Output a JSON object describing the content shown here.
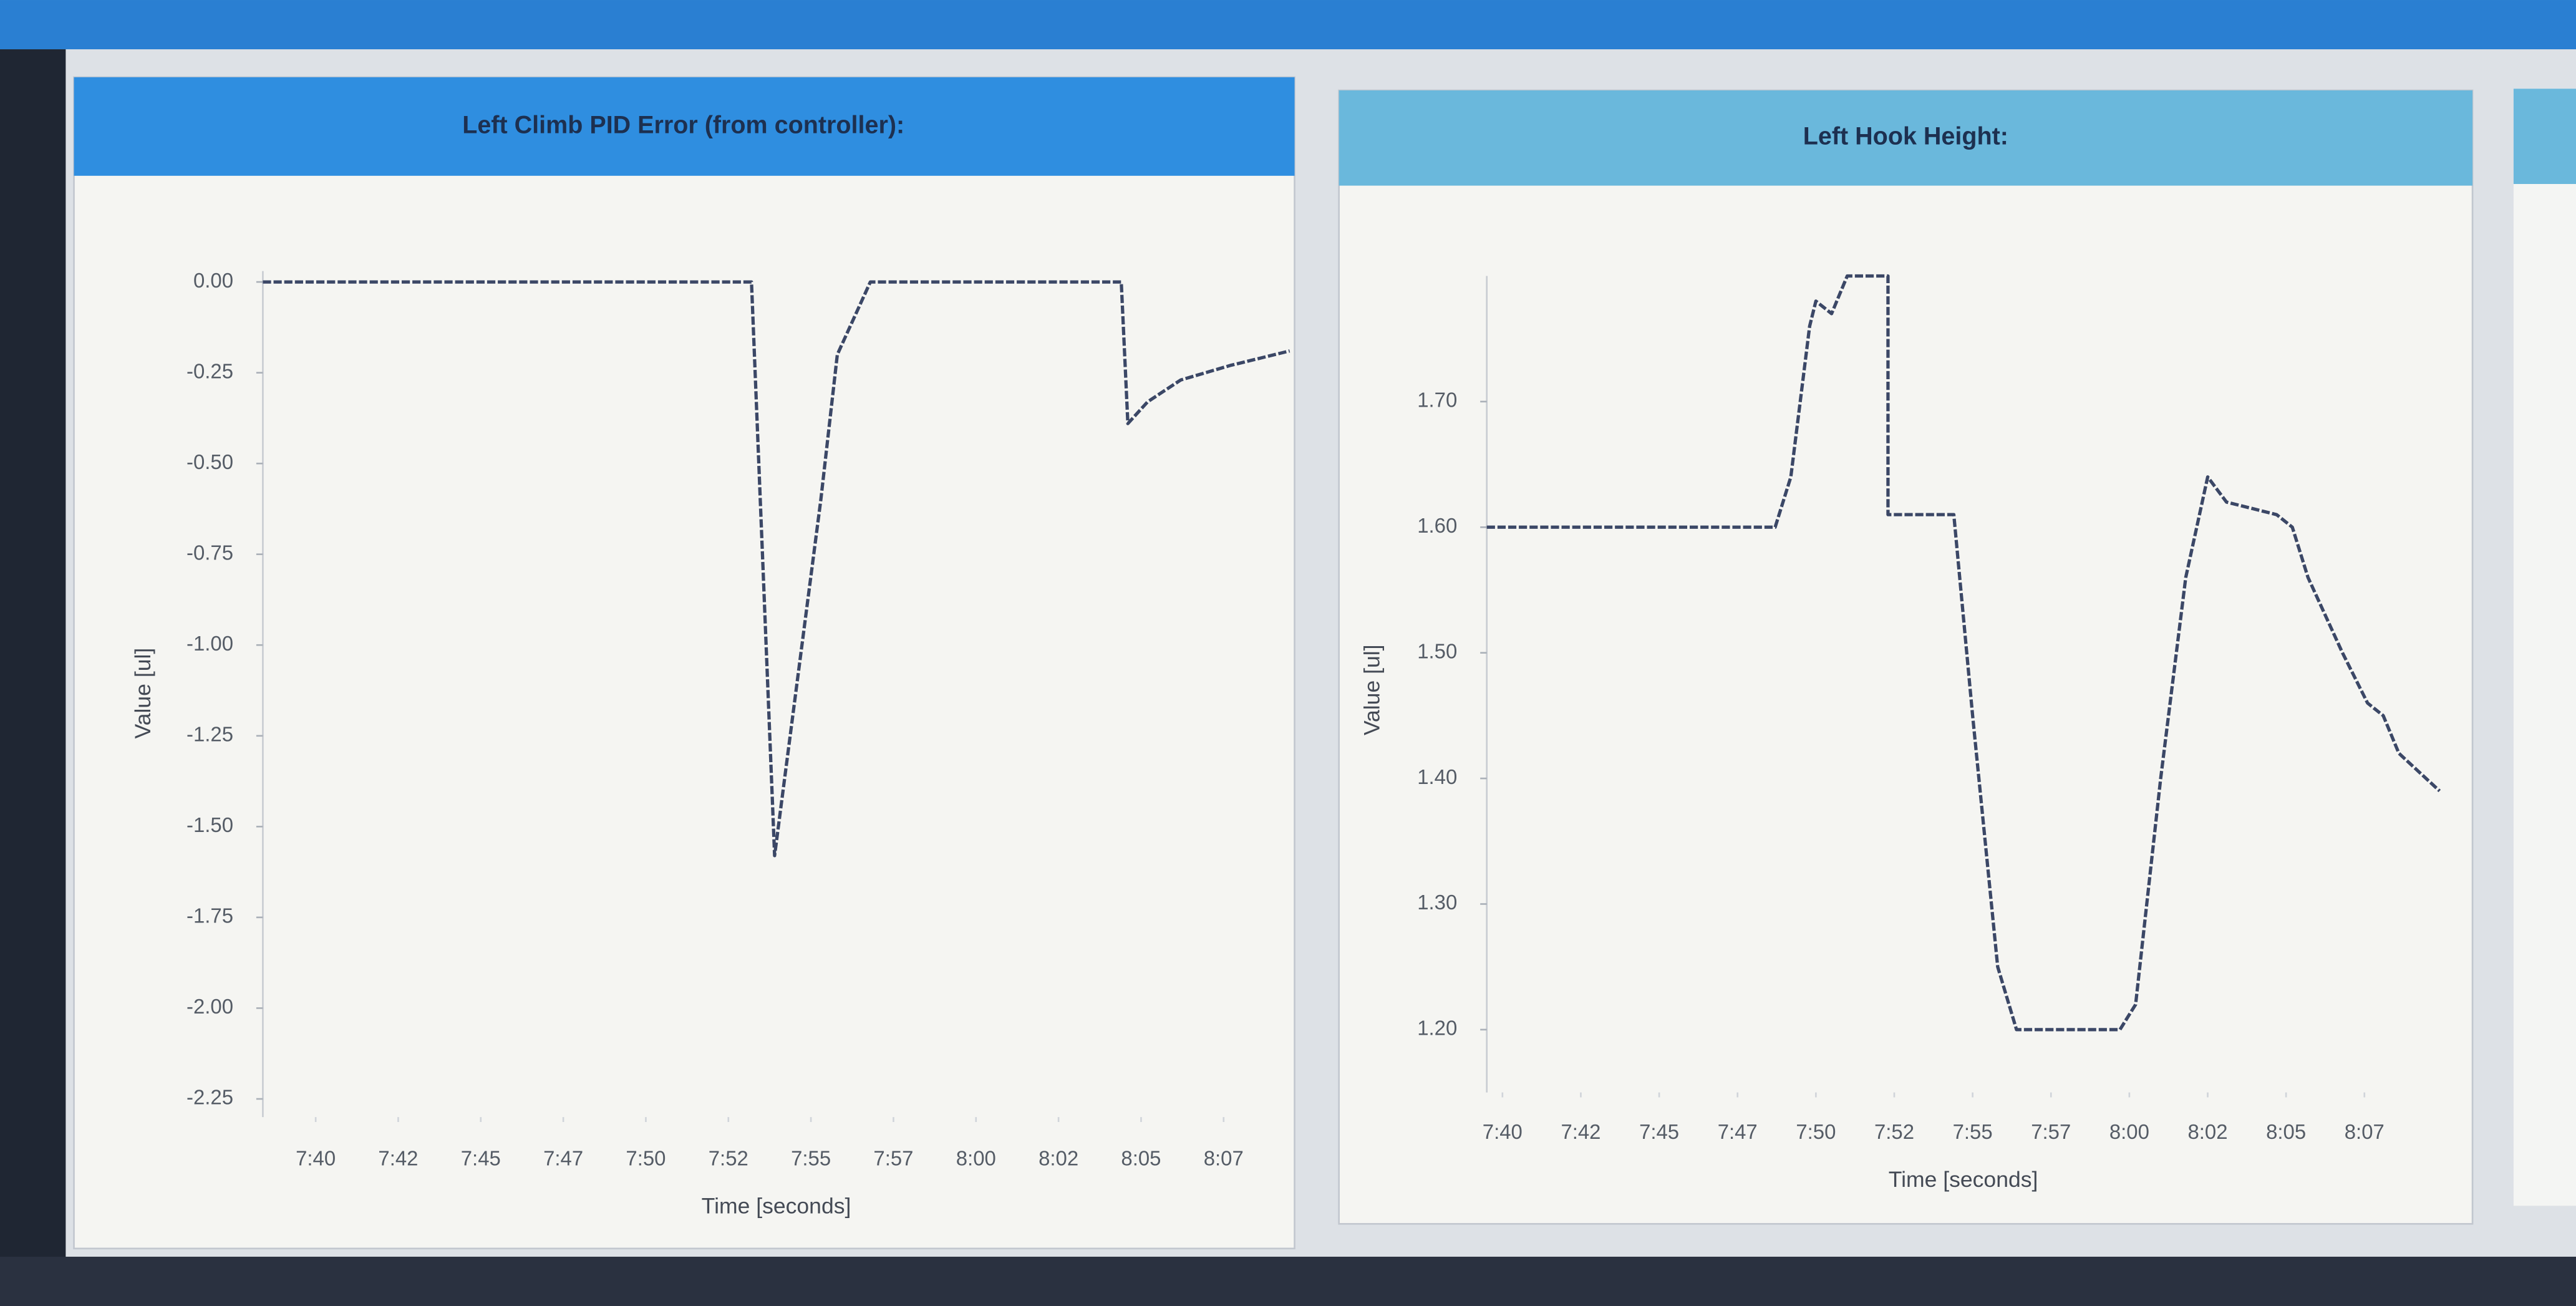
{
  "chart_data": [
    {
      "type": "line",
      "title": "Left Climb PID Error (from controller):",
      "x_label": "Time [seconds]",
      "y_label": "Value [ul]",
      "color": "#3b4766",
      "x": [
        458.4,
        473.2,
        473.9,
        475.3,
        475.8,
        476.8,
        484.4,
        484.6,
        485.2,
        486.2,
        487.7,
        489.5
      ],
      "values": [
        0,
        0,
        -1.58,
        -0.6,
        -0.2,
        0,
        0,
        -0.39,
        -0.33,
        -0.27,
        -0.23,
        -0.19
      ],
      "xlim": [
        458.4,
        489.5
      ],
      "xticks": [
        {
          "value": 460,
          "label": "7:40"
        },
        {
          "value": 462.5,
          "label": "7:42"
        },
        {
          "value": 465,
          "label": "7:45"
        },
        {
          "value": 467.5,
          "label": "7:47"
        },
        {
          "value": 470,
          "label": "7:50"
        },
        {
          "value": 472.5,
          "label": "7:52"
        },
        {
          "value": 475,
          "label": "7:55"
        },
        {
          "value": 477.5,
          "label": "7:57"
        },
        {
          "value": 480,
          "label": "8:00"
        },
        {
          "value": 482.5,
          "label": "8:02"
        },
        {
          "value": 485,
          "label": "8:05"
        },
        {
          "value": 487.5,
          "label": "8:07"
        }
      ],
      "ylim": [
        -2.3,
        0.03
      ],
      "yticks": [
        {
          "value": 0,
          "label": "0.00"
        },
        {
          "value": -0.25,
          "label": "-0.25"
        },
        {
          "value": -0.5,
          "label": "-0.50"
        },
        {
          "value": -0.75,
          "label": "-0.75"
        },
        {
          "value": -1,
          "label": "-1.00"
        },
        {
          "value": -1.25,
          "label": "-1.25"
        },
        {
          "value": -1.5,
          "label": "-1.50"
        },
        {
          "value": -1.75,
          "label": "-1.75"
        },
        {
          "value": -2,
          "label": "-2.00"
        },
        {
          "value": -2.25,
          "label": "-2.25"
        }
      ]
    },
    {
      "type": "line",
      "title": "Left Hook Height:",
      "x_label": "Time [seconds]",
      "y_label": "Value [ul]",
      "color": "#3b4766",
      "x": [
        459.5,
        468.7,
        469.2,
        469.8,
        470.0,
        470.5,
        471.0,
        472.3,
        472.3,
        474.4,
        475.0,
        475.8,
        476.4,
        479.7,
        480.2,
        481.0,
        481.8,
        482.5,
        483.1,
        484.7,
        485.2,
        485.7,
        486.8,
        487.6,
        488.1,
        488.6,
        489.9
      ],
      "values": [
        1.6,
        1.6,
        1.64,
        1.76,
        1.78,
        1.77,
        1.8,
        1.8,
        1.61,
        1.61,
        1.45,
        1.25,
        1.2,
        1.2,
        1.22,
        1.4,
        1.56,
        1.64,
        1.62,
        1.61,
        1.6,
        1.56,
        1.5,
        1.46,
        1.45,
        1.42,
        1.39
      ],
      "xlim": [
        459.5,
        489.9
      ],
      "xticks": [
        {
          "value": 460,
          "label": "7:40"
        },
        {
          "value": 462.5,
          "label": "7:42"
        },
        {
          "value": 465,
          "label": "7:45"
        },
        {
          "value": 467.5,
          "label": "7:47"
        },
        {
          "value": 470,
          "label": "7:50"
        },
        {
          "value": 472.5,
          "label": "7:52"
        },
        {
          "value": 475,
          "label": "7:55"
        },
        {
          "value": 477.5,
          "label": "7:57"
        },
        {
          "value": 480,
          "label": "8:00"
        },
        {
          "value": 482.5,
          "label": "8:02"
        },
        {
          "value": 485,
          "label": "8:05"
        },
        {
          "value": 487.5,
          "label": "8:07"
        }
      ],
      "ylim": [
        1.15,
        1.8
      ],
      "yticks": [
        {
          "value": 1.2,
          "label": "1.20"
        },
        {
          "value": 1.3,
          "label": "1.30"
        },
        {
          "value": 1.4,
          "label": "1.40"
        },
        {
          "value": 1.5,
          "label": "1.50"
        },
        {
          "value": 1.6,
          "label": "1.60"
        },
        {
          "value": 1.7,
          "label": "1.70"
        }
      ]
    }
  ]
}
